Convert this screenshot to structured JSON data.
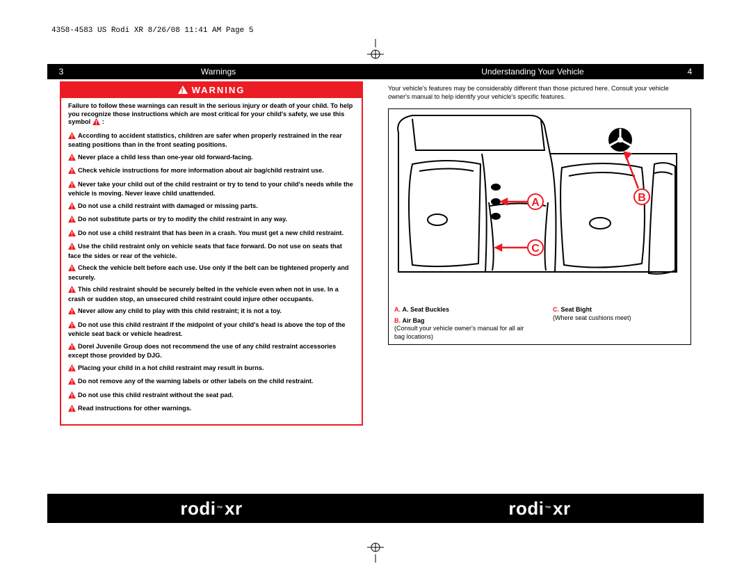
{
  "meta": {
    "header": "4358-4583 US Rodi XR  8/26/08  11:41 AM  Page 5"
  },
  "colors": {
    "red": "#ec1c24",
    "black": "#000000",
    "white": "#ffffff"
  },
  "left": {
    "pageNumber": "3",
    "title": "Warnings",
    "banner": "WARNING",
    "intro": "Failure to follow these warnings can result in the serious injury or death of your child.  To help you recognize those instructions which are most critical for your child's safety, we use this symbol",
    "items": [
      "According to accident statistics, children are safer when properly restrained in the rear seating positions than in the front seating positions.",
      "Never place a child less than one-year old forward-facing.",
      "Check vehicle instructions for more information about air bag/child restraint use.",
      "Never take your child out of the child restraint or try to tend to your child's needs while the vehicle is moving. Never leave child unattended.",
      "Do not use a child restraint with damaged or missing parts.",
      "Do not substitute parts or try to modify the child restraint in any way.",
      "Do not use a child restraint that has been in a crash. You must get a new child restraint.",
      "Use the child restraint only on vehicle seats that face forward. Do not use on seats that face the sides or rear of the vehicle.",
      "Check the vehicle belt before each use. Use only if the belt can be tightened properly and securely.",
      "This child restraint should be securely belted in the vehicle even when not in use. In a crash or sudden stop, an unsecured child restraint could injure other occupants.",
      "Never allow any child to play with this child restraint; it is not a toy.",
      "Do not use this child restraint if the midpoint of your child's head is above the top of the vehicle seat back or vehicle headrest.",
      "Dorel Juvenile Group does not recommend the use of any child restraint accessories except those provided by DJG.",
      "Placing your child in a hot child restraint may result in burns.",
      "Do not remove any of the warning labels or other labels on the child restraint.",
      "Do not use this child restraint without the seat pad.",
      "Read instructions for other warnings."
    ]
  },
  "right": {
    "pageNumber": "4",
    "title": "Understanding Your Vehicle",
    "intro": "Your vehicle's features may be considerably different than those pictured here. Consult your vehicle owner's manual to help identify your vehicle's specific features.",
    "labels": {
      "A": "A",
      "B": "B",
      "C": "C"
    },
    "legend": {
      "a_title": "A. Seat Buckles",
      "b_title": "B. Air Bag",
      "b_note": "(Consult your vehicle owner's manual for all air bag locations)",
      "c_title": "C. Seat Bight",
      "c_note": "(Where seat cushions meet)"
    }
  },
  "footer": {
    "brand": "rodi",
    "suffix": "xr",
    "tm": "™"
  }
}
